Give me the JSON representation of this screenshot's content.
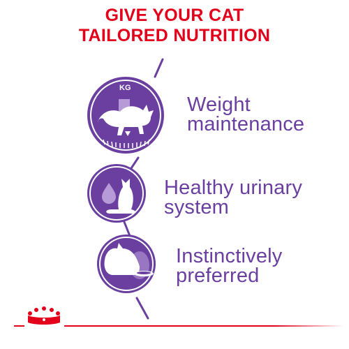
{
  "headline": {
    "line1": "GIVE YOUR CAT",
    "line2": "TAILORED NUTRITION"
  },
  "benefits": [
    {
      "line1": "Weight",
      "line2": "maintenance",
      "icon": "weight-scale-cat-icon"
    },
    {
      "line1": "Healthy urinary",
      "line2": "system",
      "icon": "urinary-drop-cat-icon"
    },
    {
      "line1": "Instinctively",
      "line2": "preferred",
      "icon": "cat-eating-bowl-icon"
    }
  ],
  "kg_label": "KG",
  "colors": {
    "headline": "#e2001a",
    "purple": "#6a3fa0",
    "purple_light": "#b79bd8",
    "brand_red": "#e2001a"
  },
  "logo": "royal-canin-crown-logo"
}
